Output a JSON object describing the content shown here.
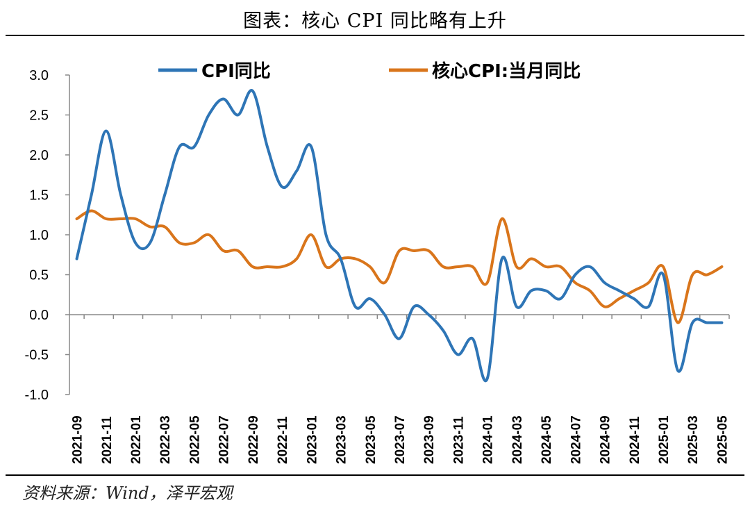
{
  "page": {
    "title": "图表：核心 CPI 同比略有上升",
    "source": "资料来源：Wind，泽平宏观"
  },
  "chart_data": {
    "type": "line",
    "title": "图表：核心 CPI 同比略有上升",
    "xlabel": "",
    "ylabel": "",
    "ylim": [
      -1.0,
      3.0
    ],
    "yticks": [
      "3.0",
      "2.5",
      "2.0",
      "1.5",
      "1.0",
      "0.5",
      "0.0",
      "-0.5",
      "-1.0"
    ],
    "grid": false,
    "legend_position": "top",
    "x": [
      "2021-09",
      "2021-10",
      "2021-11",
      "2021-12",
      "2022-01",
      "2022-02",
      "2022-03",
      "2022-04",
      "2022-05",
      "2022-06",
      "2022-07",
      "2022-08",
      "2022-09",
      "2022-10",
      "2022-11",
      "2022-12",
      "2023-01",
      "2023-02",
      "2023-03",
      "2023-04",
      "2023-05",
      "2023-06",
      "2023-07",
      "2023-08",
      "2023-09",
      "2023-10",
      "2023-11",
      "2023-12",
      "2024-01",
      "2024-02",
      "2024-03",
      "2024-04",
      "2024-05",
      "2024-06",
      "2024-07",
      "2024-08",
      "2024-09",
      "2024-10",
      "2024-11",
      "2024-12",
      "2025-01",
      "2025-02",
      "2025-03",
      "2025-04",
      "2025-05"
    ],
    "xtick_labels": [
      "2021-09",
      "2021-11",
      "2022-01",
      "2022-03",
      "2022-05",
      "2022-07",
      "2022-09",
      "2022-11",
      "2023-01",
      "2023-03",
      "2023-05",
      "2023-07",
      "2023-09",
      "2023-11",
      "2024-01",
      "2024-03",
      "2024-05",
      "2024-07",
      "2024-09",
      "2024-11",
      "2025-01",
      "2025-03",
      "2025-05"
    ],
    "series": [
      {
        "name": "CPI同比",
        "color": "#2e75b6",
        "values": [
          0.7,
          1.5,
          2.3,
          1.5,
          0.9,
          0.9,
          1.5,
          2.1,
          2.1,
          2.5,
          2.7,
          2.5,
          2.8,
          2.1,
          1.6,
          1.8,
          2.1,
          1.0,
          0.7,
          0.1,
          0.2,
          0.0,
          -0.3,
          0.1,
          0.0,
          -0.2,
          -0.5,
          -0.3,
          -0.8,
          0.7,
          0.1,
          0.3,
          0.3,
          0.2,
          0.5,
          0.6,
          0.4,
          0.3,
          0.2,
          0.1,
          0.5,
          -0.7,
          -0.1,
          -0.1,
          -0.1
        ]
      },
      {
        "name": "核心CPI:当月同比",
        "color": "#d9751b",
        "values": [
          1.2,
          1.3,
          1.2,
          1.2,
          1.2,
          1.1,
          1.1,
          0.9,
          0.9,
          1.0,
          0.8,
          0.8,
          0.6,
          0.6,
          0.6,
          0.7,
          1.0,
          0.6,
          0.7,
          0.7,
          0.6,
          0.4,
          0.8,
          0.8,
          0.8,
          0.6,
          0.6,
          0.6,
          0.4,
          1.2,
          0.6,
          0.7,
          0.6,
          0.6,
          0.4,
          0.3,
          0.1,
          0.2,
          0.3,
          0.4,
          0.6,
          -0.1,
          0.5,
          0.5,
          0.6
        ]
      }
    ]
  }
}
